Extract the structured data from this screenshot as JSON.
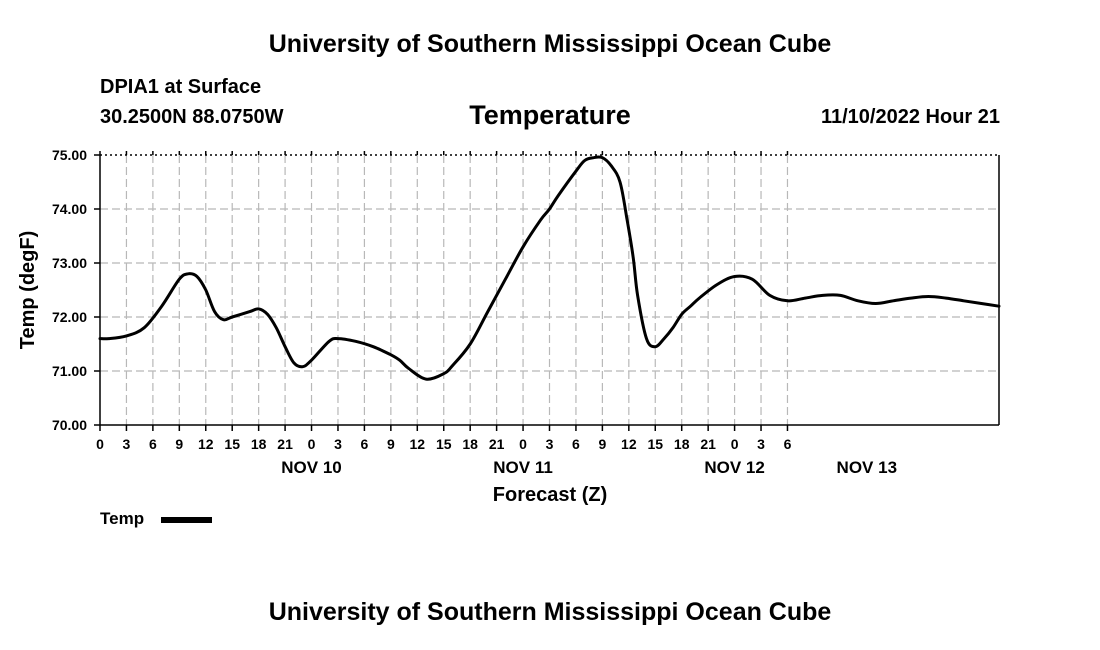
{
  "header": {
    "title": "University of Southern Mississippi Ocean Cube",
    "station": "DPIA1 at Surface",
    "coords": "30.2500N  88.0750W",
    "variable_title": "Temperature",
    "datetime": "11/10/2022 Hour 21"
  },
  "footer": {
    "title": "University of Southern Mississippi Ocean Cube"
  },
  "legend": {
    "label": "Temp"
  },
  "chart_data": {
    "type": "line",
    "title": "Temperature",
    "xlabel": "Forecast (Z)",
    "ylabel": "Temp (degF)",
    "ylim": [
      70.0,
      75.0
    ],
    "xlim": [
      0,
      102
    ],
    "grid": true,
    "legend_position": "bottom-left",
    "yticks": [
      70.0,
      71.0,
      72.0,
      73.0,
      74.0,
      75.0
    ],
    "ytick_labels": [
      "70.00",
      "71.00",
      "72.00",
      "73.00",
      "74.00",
      "75.00"
    ],
    "x_tick_step_hours": 3,
    "x_tick_labels": [
      "0",
      "3",
      "6",
      "9",
      "12",
      "15",
      "18",
      "21",
      "0",
      "3",
      "6",
      "9",
      "12",
      "15",
      "18",
      "21",
      "0",
      "3",
      "6",
      "9",
      "12",
      "15",
      "18",
      "21",
      "0",
      "3",
      "6"
    ],
    "date_labels": [
      {
        "hour": 24,
        "label": "NOV 10"
      },
      {
        "hour": 48,
        "label": "NOV 11"
      },
      {
        "hour": 72,
        "label": "NOV 12"
      },
      {
        "hour": 87,
        "label": "NOV 13"
      }
    ],
    "series": [
      {
        "name": "Temp",
        "color": "#000000",
        "x": [
          0,
          1,
          3,
          5,
          7,
          9,
          10,
          11,
          12,
          13,
          14,
          15,
          17,
          18,
          19,
          20,
          21,
          22,
          23,
          24,
          26,
          27,
          29,
          31,
          33,
          34,
          35,
          37,
          39,
          40,
          42,
          44,
          46,
          48,
          50,
          51,
          52,
          54,
          55,
          56,
          57,
          58,
          59,
          59.8,
          60.5,
          61,
          62,
          63,
          64,
          65,
          66,
          67,
          68,
          70,
          72,
          74,
          76,
          78,
          80,
          82,
          84,
          86,
          88,
          90,
          92,
          94,
          96,
          98,
          100,
          102
        ],
        "values": [
          71.6,
          71.6,
          71.65,
          71.8,
          72.2,
          72.7,
          72.8,
          72.75,
          72.5,
          72.1,
          71.95,
          72.0,
          72.1,
          72.15,
          72.05,
          71.8,
          71.45,
          71.15,
          71.08,
          71.2,
          71.55,
          71.6,
          71.55,
          71.45,
          71.3,
          71.2,
          71.05,
          70.85,
          70.95,
          71.1,
          71.5,
          72.1,
          72.7,
          73.3,
          73.8,
          74.0,
          74.25,
          74.7,
          74.9,
          74.95,
          74.95,
          74.8,
          74.5,
          73.8,
          73.1,
          72.4,
          71.6,
          71.45,
          71.6,
          71.8,
          72.05,
          72.2,
          72.35,
          72.6,
          72.75,
          72.7,
          72.4,
          72.3,
          72.35,
          72.4,
          72.4,
          72.3,
          72.25,
          72.3,
          72.35,
          72.38,
          72.35,
          72.3,
          72.25,
          72.2
        ]
      }
    ]
  }
}
